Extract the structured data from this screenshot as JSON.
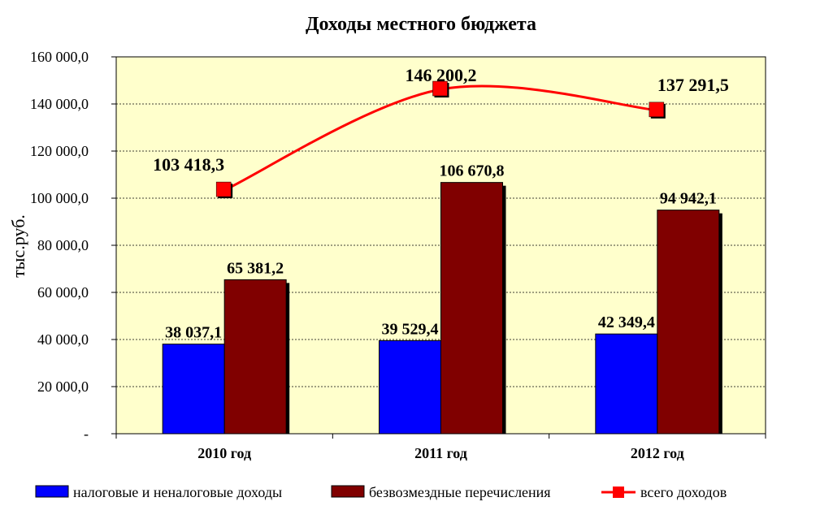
{
  "chart_data": {
    "type": "bar",
    "title": "Доходы местного бюджета",
    "ylabel": "тыс.руб.",
    "xlabel": "",
    "categories": [
      "2010 год",
      "2011 год",
      "2012 год"
    ],
    "ylim": [
      0,
      160000
    ],
    "yticks": [
      0,
      20000,
      40000,
      60000,
      80000,
      100000,
      120000,
      140000,
      160000
    ],
    "ytick_labels": [
      "-",
      "20 000,0",
      "40 000,0",
      "60 000,0",
      "80 000,0",
      "100 000,0",
      "120 000,0",
      "140 000,0",
      "160 000,0"
    ],
    "grid": true,
    "legend_position": "bottom",
    "series": [
      {
        "name": "налоговые и неналоговые доходы",
        "kind": "bar",
        "color": "#0000FF",
        "values": [
          38037.1,
          39529.4,
          42349.4
        ],
        "labels": [
          "38 037,1",
          "39 529,4",
          "42 349,4"
        ]
      },
      {
        "name": "безвозмездные перечисления",
        "kind": "bar",
        "color": "#800000",
        "values": [
          65381.2,
          106670.8,
          94942.1
        ],
        "labels": [
          "65 381,2",
          "106 670,8",
          "94 942,1"
        ]
      },
      {
        "name": "всего доходов",
        "kind": "line",
        "color": "#FF0000",
        "values": [
          103418.3,
          146200.2,
          137291.5
        ],
        "labels": [
          "103 418,3",
          "146 200,2",
          "137 291,5"
        ]
      }
    ],
    "plot_background": "#FFFFCC"
  }
}
